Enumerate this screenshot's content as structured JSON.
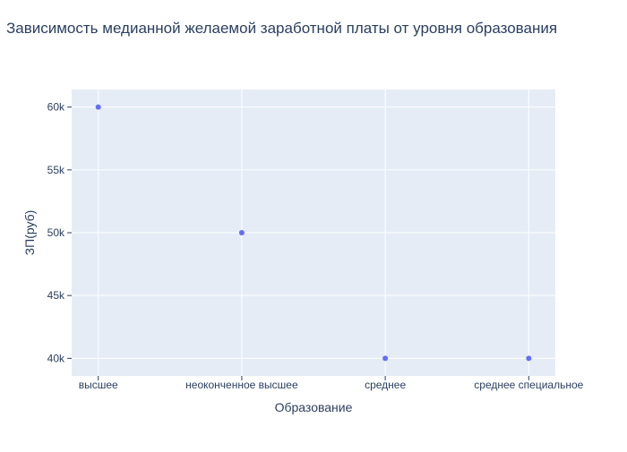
{
  "chart_data": {
    "type": "scatter",
    "title": "Зависимость медианной желаемой заработной платы от уровня образования",
    "xlabel": "Образование",
    "ylabel": "ЗП(руб)",
    "categories": [
      "высшее",
      "неоконченное высшее",
      "среднее",
      "среднее специальное"
    ],
    "series": [
      {
        "values": [
          60000,
          50000,
          40000,
          40000
        ]
      }
    ],
    "ylim": [
      38600,
      61400
    ],
    "yticks": [
      40000,
      45000,
      50000,
      55000,
      60000
    ],
    "ytick_labels": [
      "40k",
      "45k",
      "50k",
      "55k",
      "60k"
    ],
    "grid": true,
    "legend": "none",
    "colors": {
      "plot_background": "#e5ecf6",
      "marker": "#636efa",
      "text": "#2a3f5f",
      "grid": "#ffffff"
    }
  }
}
